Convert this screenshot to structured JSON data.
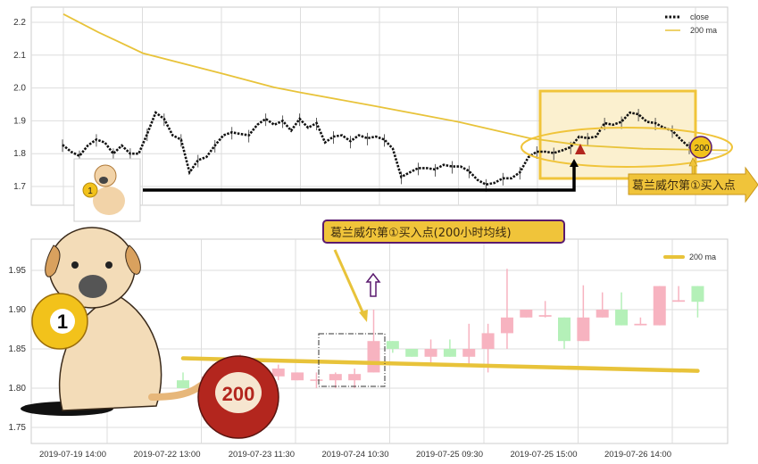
{
  "colors": {
    "ma": "#e8c33a",
    "up": "#f7b3c0",
    "down": "#b4f0b8",
    "close": "#111111",
    "highlight": "#f0c43a",
    "callout_border": "#5a1a6e",
    "ball_red": "#b3261e",
    "ball_yellow": "#f2c21b"
  },
  "chart_data": [
    {
      "type": "line",
      "panel": "top",
      "legend": [
        "close",
        "200 ma"
      ],
      "legend_position": "top-right",
      "grid": true,
      "ylim": [
        1.65,
        2.25
      ],
      "yticks": [
        "1.7",
        "1.8",
        "1.9",
        "2.0",
        "2.1",
        "2.2"
      ],
      "series": [
        {
          "name": "close",
          "style": "dotted",
          "values": [
            1.827,
            1.806,
            1.793,
            1.825,
            1.843,
            1.834,
            1.8,
            1.825,
            1.8,
            1.8,
            1.86,
            1.925,
            1.906,
            1.856,
            1.843,
            1.743,
            1.78,
            1.79,
            1.825,
            1.856,
            1.865,
            1.86,
            1.856,
            1.888,
            1.906,
            1.888,
            1.9,
            1.87,
            1.906,
            1.879,
            1.893,
            1.834,
            1.852,
            1.856,
            1.838,
            1.856,
            1.847,
            1.852,
            1.843,
            1.815,
            1.729,
            1.743,
            1.756,
            1.756,
            1.752,
            1.766,
            1.761,
            1.761,
            1.747,
            1.72,
            1.706,
            1.711,
            1.725,
            1.725,
            1.743,
            1.789,
            1.806,
            1.806,
            1.802,
            1.81,
            1.82,
            1.852,
            1.847,
            1.852,
            1.893,
            1.888,
            1.897,
            1.925,
            1.92,
            1.897,
            1.893,
            1.879,
            1.87,
            1.843,
            1.82
          ]
        },
        {
          "name": "200 ma",
          "style": "solid",
          "values": [
            2.225,
            2.17,
            2.106,
            2.043,
            2.002,
            1.986,
            1.945,
            1.897,
            1.847,
            1.825,
            1.815,
            1.81
          ]
        }
      ],
      "annotations": [
        "葛兰威尔第①买入点",
        "200",
        "1"
      ]
    },
    {
      "type": "candlestick",
      "panel": "bottom",
      "legend": [
        "200 ma"
      ],
      "legend_position": "top-right",
      "grid": true,
      "ylim": [
        1.73,
        1.98
      ],
      "yticks": [
        "1.75",
        "1.80",
        "1.85",
        "1.90",
        "1.95"
      ],
      "xticks": [
        "2019-07-19 14:00",
        "2019-07-22 13:00",
        "2019-07-23 11:30",
        "2019-07-24 10:30",
        "2019-07-25 09:30",
        "2019-07-25 15:00",
        "2019-07-26 14:00"
      ],
      "candles": [
        {
          "o": 1.81,
          "c": 1.8,
          "h": 1.82,
          "l": 1.8
        },
        {
          "o": 1.8,
          "c": 1.805,
          "h": 1.815,
          "l": 1.8
        },
        null,
        {
          "o": 1.815,
          "c": 1.825,
          "h": 1.843,
          "l": 1.81
        },
        null,
        {
          "o": 1.815,
          "c": 1.825,
          "h": 1.83,
          "l": 1.81
        },
        {
          "o": 1.81,
          "c": 1.82,
          "h": 1.82,
          "l": 1.81
        },
        {
          "o": 1.81,
          "c": 1.811,
          "h": 1.82,
          "l": 1.8
        },
        {
          "o": 1.81,
          "c": 1.818,
          "h": 1.82,
          "l": 1.8
        },
        {
          "o": 1.81,
          "c": 1.818,
          "h": 1.825,
          "l": 1.8
        },
        {
          "o": 1.82,
          "c": 1.86,
          "h": 1.9,
          "l": 1.82
        },
        {
          "o": 1.86,
          "c": 1.85,
          "h": 1.86,
          "l": 1.845
        },
        {
          "o": 1.85,
          "c": 1.84,
          "h": 1.85,
          "l": 1.84
        },
        {
          "o": 1.84,
          "c": 1.85,
          "h": 1.862,
          "l": 1.83
        },
        {
          "o": 1.85,
          "c": 1.84,
          "h": 1.862,
          "l": 1.84
        },
        {
          "o": 1.84,
          "c": 1.85,
          "h": 1.882,
          "l": 1.83
        },
        {
          "o": 1.85,
          "c": 1.87,
          "h": 1.882,
          "l": 1.82
        },
        {
          "o": 1.87,
          "c": 1.89,
          "h": 1.952,
          "l": 1.85
        },
        {
          "o": 1.89,
          "c": 1.9,
          "h": 1.9,
          "l": 1.89
        },
        {
          "o": 1.891,
          "c": 1.893,
          "h": 1.911,
          "l": 1.89
        },
        {
          "o": 1.89,
          "c": 1.86,
          "h": 1.89,
          "l": 1.85
        },
        {
          "o": 1.86,
          "c": 1.89,
          "h": 1.931,
          "l": 1.86
        },
        {
          "o": 1.89,
          "c": 1.9,
          "h": 1.922,
          "l": 1.89
        },
        {
          "o": 1.9,
          "c": 1.88,
          "h": 1.922,
          "l": 1.88
        },
        {
          "o": 1.88,
          "c": 1.882,
          "h": 1.89,
          "l": 1.88
        },
        {
          "o": 1.88,
          "c": 1.93,
          "h": 1.93,
          "l": 1.88
        },
        {
          "o": 1.91,
          "c": 1.912,
          "h": 1.93,
          "l": 1.91
        },
        {
          "o": 1.93,
          "c": 1.91,
          "h": 1.93,
          "l": 1.89
        }
      ],
      "ma": {
        "name": "200 ma",
        "start": 1.838,
        "end": 1.822
      },
      "annotations": [
        "葛兰威尔第①买入点(200小时均线)",
        "200",
        "1"
      ]
    }
  ],
  "top": {
    "legend_close": "close",
    "legend_ma": "200 ma",
    "callout": "葛兰威尔第①买入点",
    "ball_label": "200",
    "dog_ball_label": "1"
  },
  "bottom": {
    "legend_ma": "200 ma",
    "callout": "葛兰威尔第①买入点(200小时均线)",
    "ball_label": "200",
    "dog_ball_label": "1"
  }
}
